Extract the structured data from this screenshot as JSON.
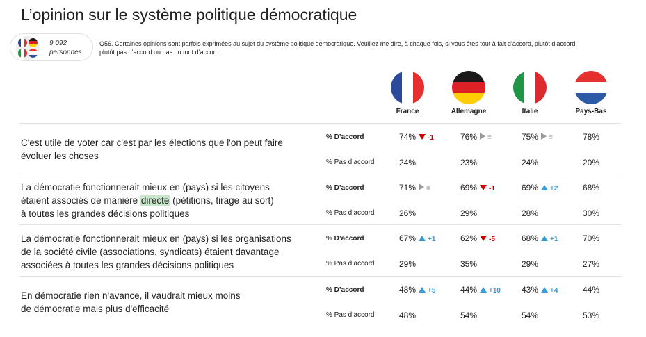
{
  "title": "L’opinion sur le système politique démocratique",
  "sample": {
    "count": "9,092",
    "unit": "personnes"
  },
  "question_line1": "Q56. Certaines opinions sont parfois exprimées au sujet du système politique démocratique. Veuillez me dire, à chaque fois, si vous êtes tout à fait d’accord, plutôt d’accord,",
  "question_line2": "plutôt pas d’accord ou pas du tout d’accord.",
  "countries": [
    {
      "name": "France",
      "colors": [
        "#2b4a9b",
        "#ffffff",
        "#e5302f"
      ]
    },
    {
      "name": "Allemagne",
      "colors": [
        "#1a1a1a",
        "#dd1f26",
        "#ffce00"
      ]
    },
    {
      "name": "Italie",
      "colors": [
        "#1e9645",
        "#ffffff",
        "#dd2a2f"
      ]
    },
    {
      "name": "Pays-Bas",
      "colors": [
        "#e5302f",
        "#ffffff",
        "#2d5aa6"
      ]
    }
  ],
  "labels": {
    "accord": "% D’accord",
    "pas_accord": "% Pas d’accord"
  },
  "statements": [
    {
      "text_a": "C'est utile de voter car c'est par les élections que l'on peut faire",
      "text_b": "évoluer les choses",
      "text_c": ""
    },
    {
      "text_a": "La démocratie fonctionnerait mieux en (pays) si les citoyens",
      "text_b_pre": "étaient associés de manière ",
      "text_b_hl": "directe",
      "text_b_post": " (pétitions, tirage au sort)",
      "text_c": "à toutes les grandes décisions politiques"
    },
    {
      "text_a": "La démocratie fonctionnerait mieux en (pays) si les organisations",
      "text_b": "de la société civile (associations, syndicats) étaient davantage",
      "text_c": "associées à toutes les grandes décisions politiques"
    },
    {
      "text_a": "En démocratie rien n'avance, il vaudrait mieux moins",
      "text_b": "de démocratie mais plus d'efficacité",
      "text_c": ""
    }
  ],
  "values": [
    {
      "accord": [
        {
          "v": "74%",
          "dir": "down",
          "d": "-1"
        },
        {
          "v": "76%",
          "dir": "eq",
          "d": "="
        },
        {
          "v": "75%",
          "dir": "eq",
          "d": "="
        },
        {
          "v": "78%",
          "dir": "",
          "d": ""
        }
      ],
      "pas": [
        "24%",
        "23%",
        "24%",
        "20%"
      ]
    },
    {
      "accord": [
        {
          "v": "71%",
          "dir": "eq",
          "d": "="
        },
        {
          "v": "69%",
          "dir": "down",
          "d": "-1"
        },
        {
          "v": "69%",
          "dir": "up",
          "d": "+2"
        },
        {
          "v": "68%",
          "dir": "",
          "d": ""
        }
      ],
      "pas": [
        "26%",
        "29%",
        "28%",
        "30%"
      ]
    },
    {
      "accord": [
        {
          "v": "67%",
          "dir": "up",
          "d": "+1"
        },
        {
          "v": "62%",
          "dir": "down",
          "d": "-5"
        },
        {
          "v": "68%",
          "dir": "up",
          "d": "+1"
        },
        {
          "v": "70%",
          "dir": "",
          "d": ""
        }
      ],
      "pas": [
        "29%",
        "35%",
        "29%",
        "27%"
      ]
    },
    {
      "accord": [
        {
          "v": "48%",
          "dir": "up",
          "d": "+5"
        },
        {
          "v": "44%",
          "dir": "up",
          "d": "+10"
        },
        {
          "v": "43%",
          "dir": "up",
          "d": "+4"
        },
        {
          "v": "44%",
          "dir": "",
          "d": ""
        }
      ],
      "pas": [
        "48%",
        "54%",
        "54%",
        "53%"
      ]
    }
  ]
}
